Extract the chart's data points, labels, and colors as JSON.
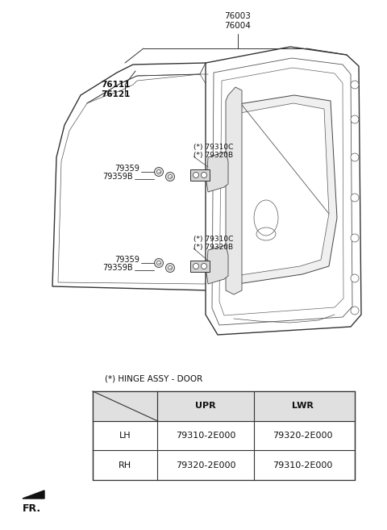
{
  "bg_color": "#ffffff",
  "fig_width": 4.8,
  "fig_height": 6.57,
  "dpi": 100,
  "label_76003": "76003\n76004",
  "label_76111": "76111\n76121",
  "label_79310C_top": "(*) 79310C\n(*) 79320B",
  "label_79359_1": "79359",
  "label_79359B_1": "79359B",
  "label_79310C_bot": "(*) 79310C\n(*) 79320B",
  "label_79359_2": "79359",
  "label_79359B_2": "79359B",
  "hinge_note": "(*) HINGE ASSY - DOOR",
  "fr_label": "FR.",
  "table_headers": [
    "",
    "UPR",
    "LWR"
  ],
  "table_rows": [
    [
      "LH",
      "79310-2E000",
      "79320-2E000"
    ],
    [
      "RH",
      "79320-2E000",
      "79310-2E000"
    ]
  ]
}
